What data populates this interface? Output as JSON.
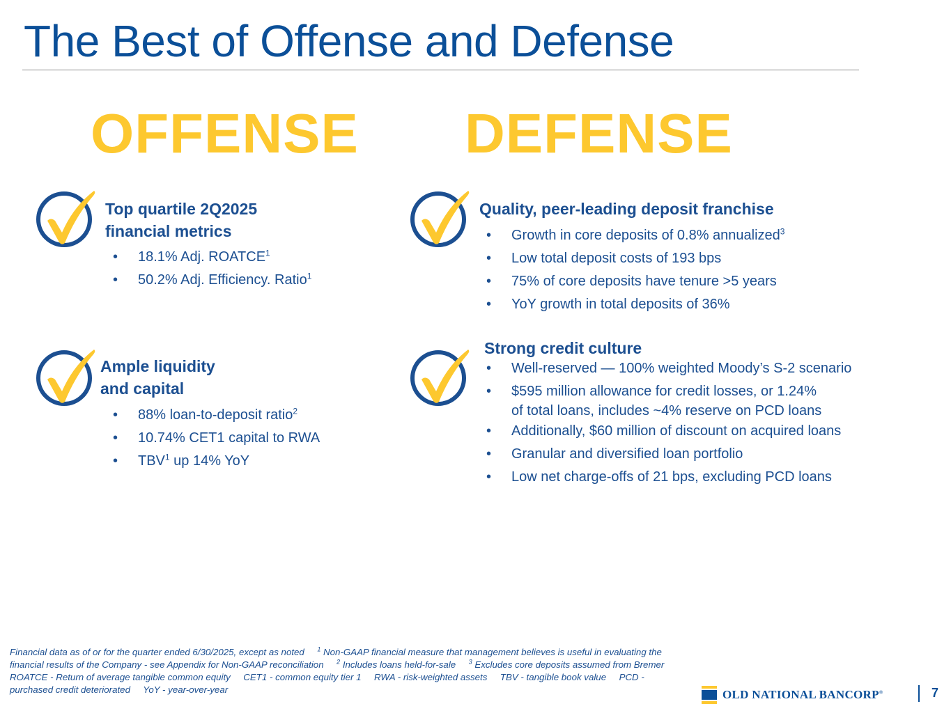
{
  "title": "The Best of Offense and Defense",
  "offense_label": "OFFENSE",
  "defense_label": "DEFENSE",
  "colors": {
    "blue": "#1c4f91",
    "dark_blue": "#0b4f98",
    "gold": "#fdc82f"
  },
  "icons": [
    "checkmark-icon"
  ],
  "offense": {
    "block1": {
      "heading_line1": "Top quartile 2Q2025",
      "heading_line2": "financial metrics",
      "bullets": [
        {
          "text": "18.1% Adj. ROATCE",
          "sup": "1"
        },
        {
          "text": "50.2% Adj. Efficiency. Ratio",
          "sup": "1"
        }
      ]
    },
    "block2": {
      "heading_line1": "Ample liquidity",
      "heading_line2": "and capital",
      "bullets": [
        {
          "text": "88% loan-to-deposit ratio",
          "sup": "2"
        },
        {
          "text": "10.74% CET1 capital to RWA",
          "sup": ""
        },
        {
          "pre": "TBV",
          "sup": "1",
          "post": " up 14% YoY"
        }
      ]
    }
  },
  "defense": {
    "block1": {
      "heading": "Quality, peer-leading deposit franchise",
      "bullets": [
        {
          "text": "Growth in core deposits of 0.8% annualized",
          "sup": "3"
        },
        {
          "text": "Low total deposit costs of 193 bps"
        },
        {
          "text": "75% of core deposits have tenure >5 years"
        },
        {
          "text": "YoY growth in total deposits of 36%"
        }
      ]
    },
    "block2": {
      "heading": "Strong credit culture",
      "bullets": [
        {
          "text": "Well-reserved — 100% weighted Moody’s S-2 scenario"
        },
        {
          "text": "$595 million allowance for credit losses, or 1.24%",
          "text2": "of total loans, includes ~4% reserve on PCD loans"
        },
        {
          "text": "Additionally, $60 million of discount on acquired loans"
        },
        {
          "text": "Granular and diversified loan portfolio"
        },
        {
          "text": "Low net charge-offs of 21 bps, excluding PCD loans"
        }
      ]
    }
  },
  "footnote": {
    "part1": "Financial data as of or for the quarter ended 6/30/2025, except as noted",
    "sup1": "1",
    "part2": "Non-GAAP financial measure that management believes is useful in evaluating the financial results of the Company - see Appendix for Non-GAAP reconciliation",
    "sup2": "2",
    "part3": "Includes loans held-for-sale",
    "sup3": "3",
    "part4": "Excludes core deposits assumed from Bremer",
    "abbr1": "ROATCE - Return of average tangible common equity",
    "abbr2": "CET1 - common equity tier 1",
    "abbr3": "RWA - risk-weighted assets",
    "abbr4": "TBV - tangible book value",
    "abbr5": "PCD - purchased credit deteriorated",
    "abbr6": "YoY - year-over-year"
  },
  "logo_text": "OLD NATIONAL BANCORP",
  "logo_mark": "®",
  "page_number": "7"
}
